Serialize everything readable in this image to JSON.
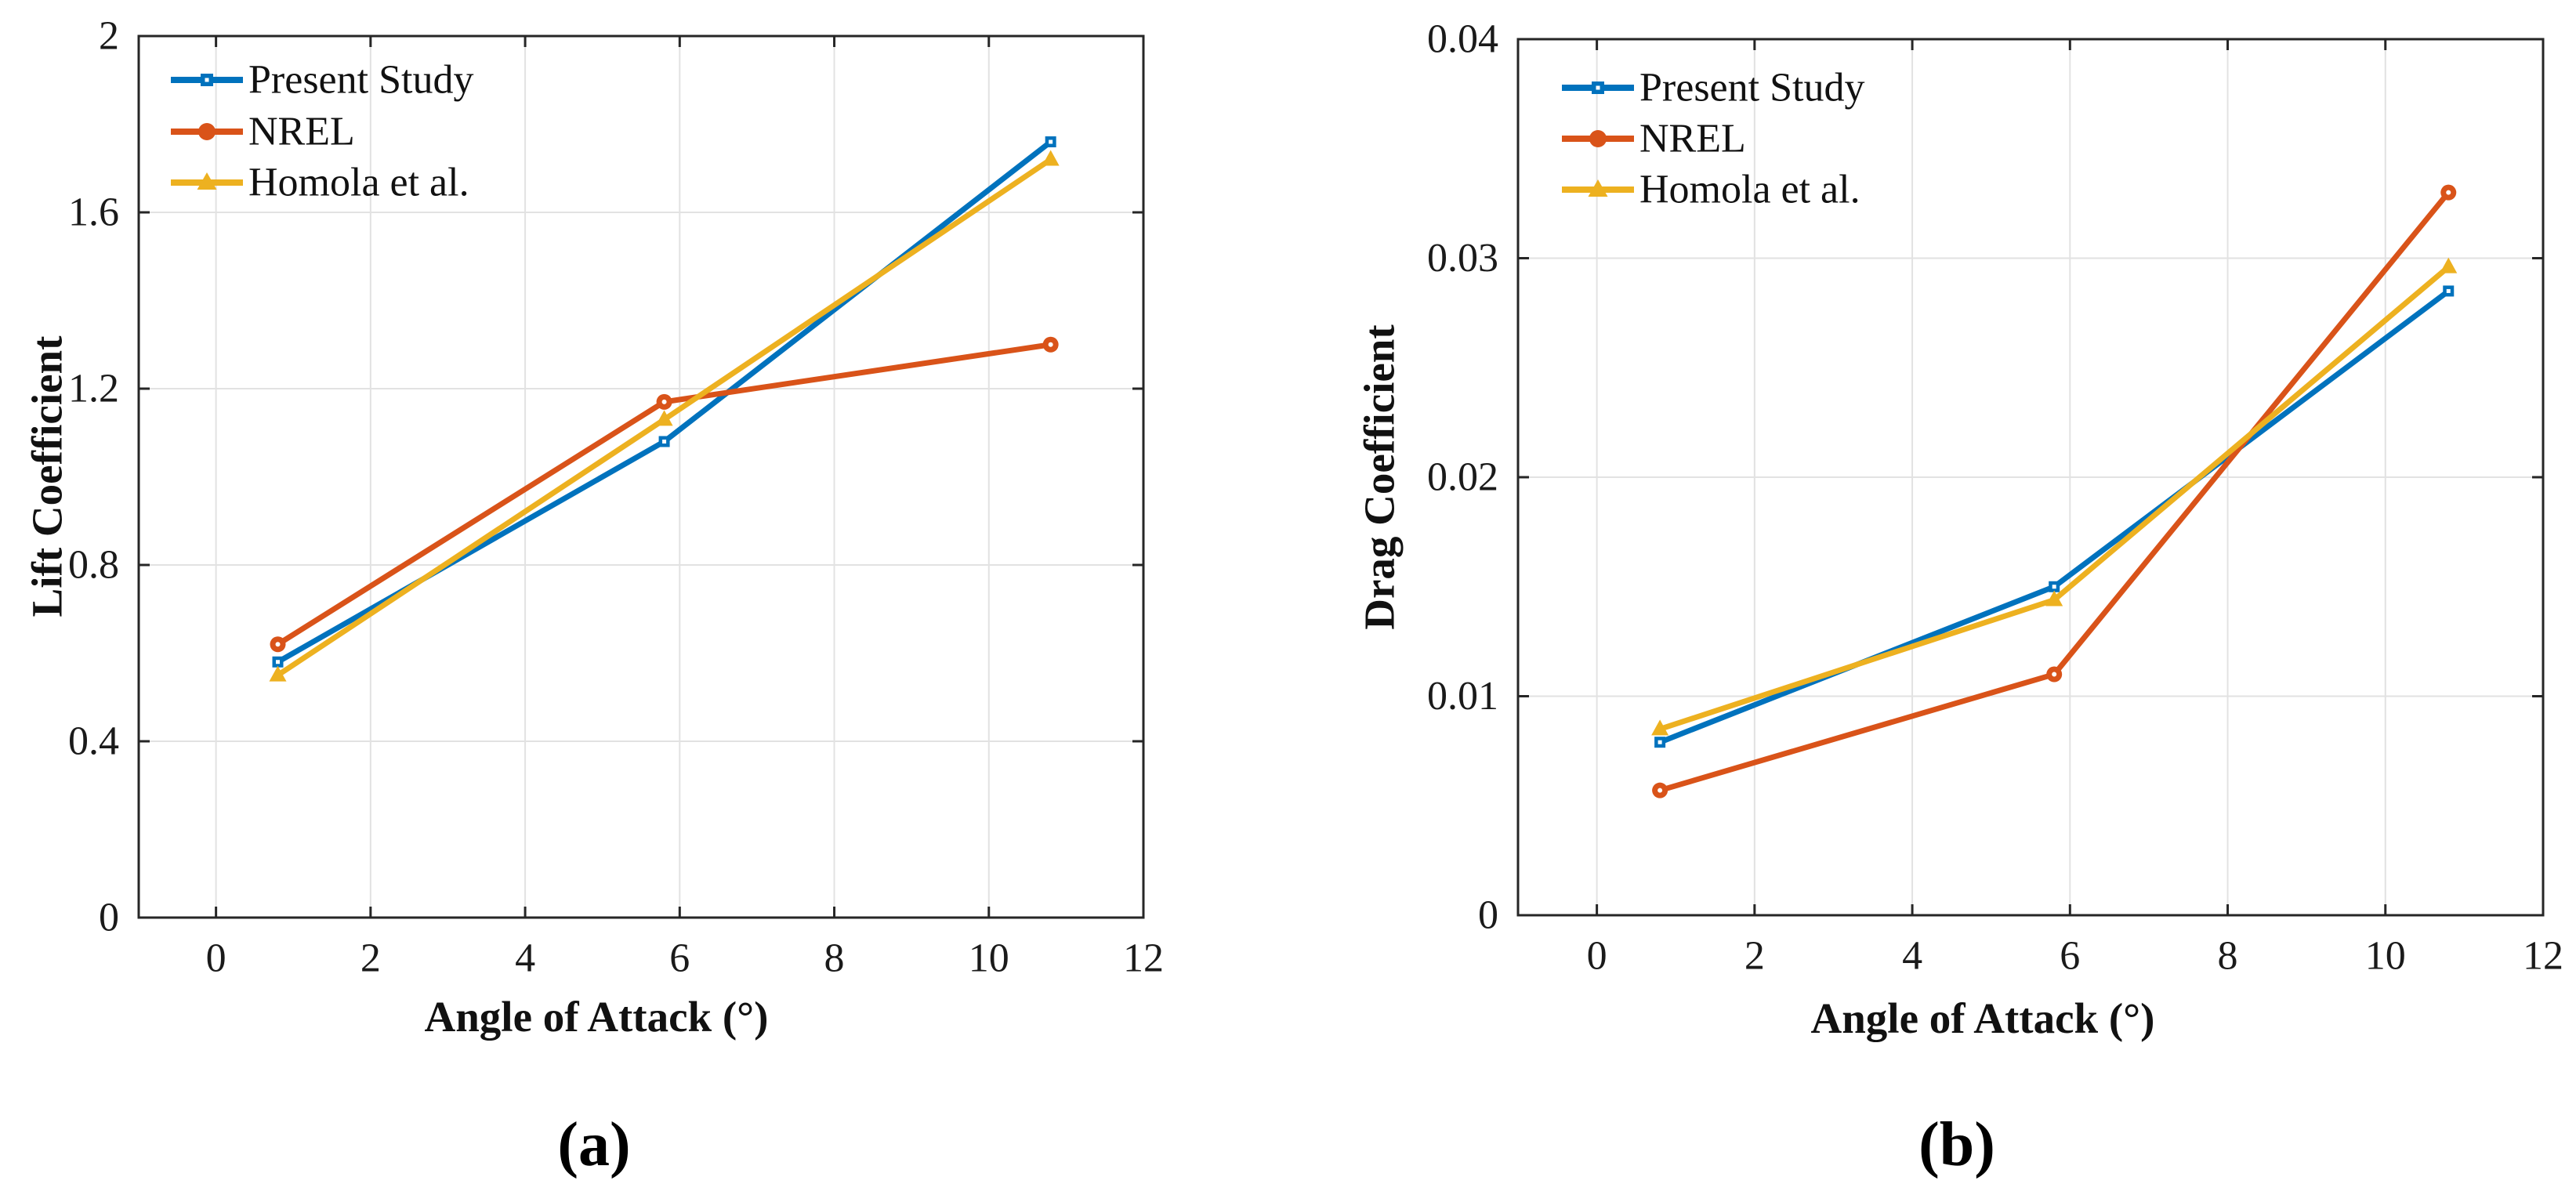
{
  "figure": {
    "background": "#ffffff",
    "axis_color": "#262626",
    "grid_color": "#e2e2e2",
    "tick_label_color": "#1a1a1a"
  },
  "chart_data": [
    {
      "type": "line",
      "caption": "(a)",
      "xlabel": "Angle of Attack (°)",
      "ylabel": "Lift Coefficient",
      "x": [
        0.8,
        5.8,
        10.8
      ],
      "xlim": [
        -1,
        12
      ],
      "ylim": [
        0,
        2
      ],
      "xticks": [
        0,
        2,
        4,
        6,
        8,
        10,
        12
      ],
      "xtick_labels": [
        "0",
        "2",
        "4",
        "6",
        "8",
        "10",
        "12"
      ],
      "yticks": [
        0,
        0.4,
        0.8,
        1.2,
        1.6,
        2
      ],
      "ytick_labels": [
        "0",
        "0.4",
        "0.8",
        "1.2",
        "1.6",
        "2"
      ],
      "grid": true,
      "legend_position": "top-left",
      "series": [
        {
          "name": "Present Study",
          "color": "#0072BD",
          "marker": "square",
          "values": [
            0.58,
            1.08,
            1.76
          ]
        },
        {
          "name": "NREL",
          "color": "#D95319",
          "marker": "circle",
          "values": [
            0.62,
            1.17,
            1.3
          ]
        },
        {
          "name": "Homola et al.",
          "color": "#EDB120",
          "marker": "triangle",
          "values": [
            0.55,
            1.13,
            1.72
          ]
        }
      ]
    },
    {
      "type": "line",
      "caption": "(b)",
      "xlabel": "Angle of Attack (°)",
      "ylabel": "Drag Coefficient",
      "x": [
        0.8,
        5.8,
        10.8
      ],
      "xlim": [
        -1,
        12
      ],
      "ylim": [
        0,
        0.04
      ],
      "xticks": [
        0,
        2,
        4,
        6,
        8,
        10,
        12
      ],
      "xtick_labels": [
        "0",
        "2",
        "4",
        "6",
        "8",
        "10",
        "12"
      ],
      "yticks": [
        0,
        0.01,
        0.02,
        0.03,
        0.04
      ],
      "ytick_labels": [
        "0",
        "0.01",
        "0.02",
        "0.03",
        "0.04"
      ],
      "grid": true,
      "legend_position": "top-left",
      "series": [
        {
          "name": "Present Study",
          "color": "#0072BD",
          "marker": "square",
          "values": [
            0.0079,
            0.015,
            0.0285
          ]
        },
        {
          "name": "NREL",
          "color": "#D95319",
          "marker": "circle",
          "values": [
            0.0057,
            0.011,
            0.033
          ]
        },
        {
          "name": "Homola et al.",
          "color": "#EDB120",
          "marker": "triangle",
          "values": [
            0.0085,
            0.0144,
            0.0296
          ]
        }
      ]
    }
  ]
}
